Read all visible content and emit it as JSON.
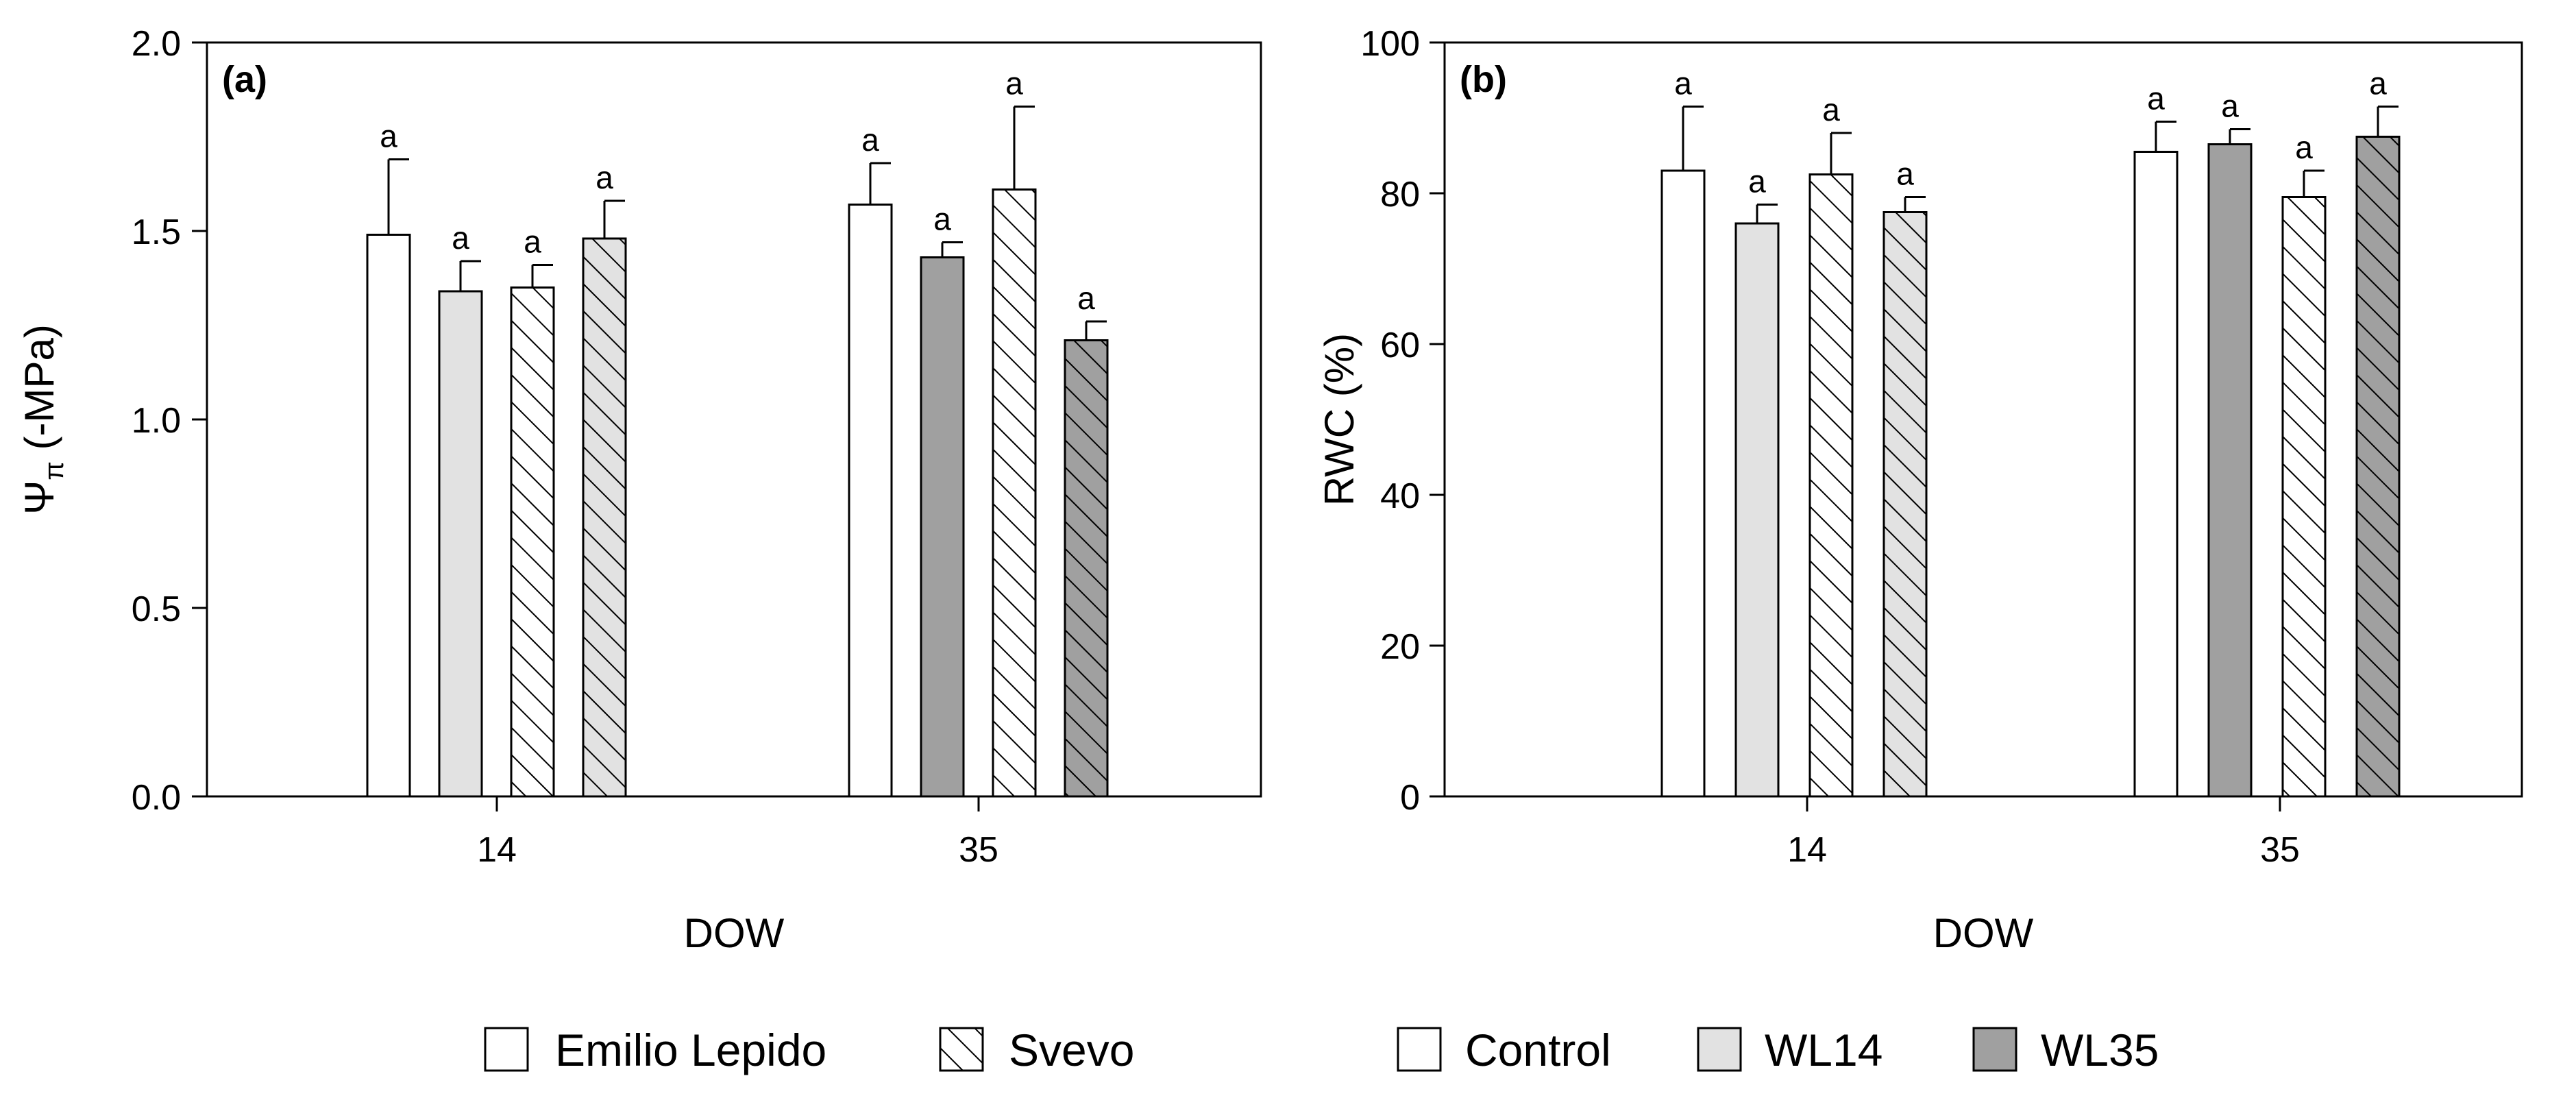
{
  "chart_data": [
    {
      "type": "bar",
      "panel_label": "(a)",
      "xlabel": "DOW",
      "ylabel": "Ψπ (-MPa)",
      "ylabel_main": "Ψ",
      "ylabel_sub": "π",
      "ylabel_rest": " (-MPa)",
      "ylim": [
        0,
        2.0
      ],
      "yticks": [
        "0.0",
        "0.5",
        "1.0",
        "1.5",
        "2.0"
      ],
      "ytick_values": [
        0,
        0.5,
        1.0,
        1.5,
        2.0
      ],
      "categories": [
        "14",
        "35"
      ],
      "groups": [
        {
          "category": "14",
          "bars": [
            {
              "cultivar": "Emilio Lepido",
              "treatment": "Control",
              "value": 1.49,
              "error": 0.2,
              "letter": "a"
            },
            {
              "cultivar": "Emilio Lepido",
              "treatment": "WL14",
              "value": 1.34,
              "error": 0.08,
              "letter": "a"
            },
            {
              "cultivar": "Svevo",
              "treatment": "Control",
              "value": 1.35,
              "error": 0.06,
              "letter": "a"
            },
            {
              "cultivar": "Svevo",
              "treatment": "WL14",
              "value": 1.48,
              "error": 0.1,
              "letter": "a"
            }
          ]
        },
        {
          "category": "35",
          "bars": [
            {
              "cultivar": "Emilio Lepido",
              "treatment": "Control",
              "value": 1.57,
              "error": 0.11,
              "letter": "a"
            },
            {
              "cultivar": "Emilio Lepido",
              "treatment": "WL35",
              "value": 1.43,
              "error": 0.04,
              "letter": "a"
            },
            {
              "cultivar": "Svevo",
              "treatment": "Control",
              "value": 1.61,
              "error": 0.22,
              "letter": "a"
            },
            {
              "cultivar": "Svevo",
              "treatment": "WL35",
              "value": 1.21,
              "error": 0.05,
              "letter": "a"
            }
          ]
        }
      ]
    },
    {
      "type": "bar",
      "panel_label": "(b)",
      "xlabel": "DOW",
      "ylabel": "RWC (%)",
      "ylim": [
        0,
        100
      ],
      "yticks": [
        "0",
        "20",
        "40",
        "60",
        "80",
        "100"
      ],
      "ytick_values": [
        0,
        20,
        40,
        60,
        80,
        100
      ],
      "categories": [
        "14",
        "35"
      ],
      "groups": [
        {
          "category": "14",
          "bars": [
            {
              "cultivar": "Emilio Lepido",
              "treatment": "Control",
              "value": 83,
              "error": 8.5,
              "letter": "a"
            },
            {
              "cultivar": "Emilio Lepido",
              "treatment": "WL14",
              "value": 76,
              "error": 2.5,
              "letter": "a"
            },
            {
              "cultivar": "Svevo",
              "treatment": "Control",
              "value": 82.5,
              "error": 5.5,
              "letter": "a"
            },
            {
              "cultivar": "Svevo",
              "treatment": "WL14",
              "value": 77.5,
              "error": 2.0,
              "letter": "a"
            }
          ]
        },
        {
          "category": "35",
          "bars": [
            {
              "cultivar": "Emilio Lepido",
              "treatment": "Control",
              "value": 85.5,
              "error": 4.0,
              "letter": "a"
            },
            {
              "cultivar": "Emilio Lepido",
              "treatment": "WL35",
              "value": 86.5,
              "error": 2.0,
              "letter": "a"
            },
            {
              "cultivar": "Svevo",
              "treatment": "Control",
              "value": 79.5,
              "error": 3.5,
              "letter": "a"
            },
            {
              "cultivar": "Svevo",
              "treatment": "WL35",
              "value": 87.5,
              "error": 4.0,
              "letter": "a"
            }
          ]
        }
      ]
    }
  ],
  "legend": {
    "cultivars": [
      {
        "label": "Emilio Lepido",
        "pattern": "solid"
      },
      {
        "label": "Svevo",
        "pattern": "hatched"
      }
    ],
    "treatments": [
      {
        "label": "Control",
        "color": "#ffffff"
      },
      {
        "label": "WL14",
        "color": "#e2e2e2"
      },
      {
        "label": "WL35",
        "color": "#a0a0a0"
      }
    ]
  },
  "colors": {
    "Control": "#ffffff",
    "WL14": "#e2e2e2",
    "WL35": "#a0a0a0",
    "line": "#000000"
  }
}
